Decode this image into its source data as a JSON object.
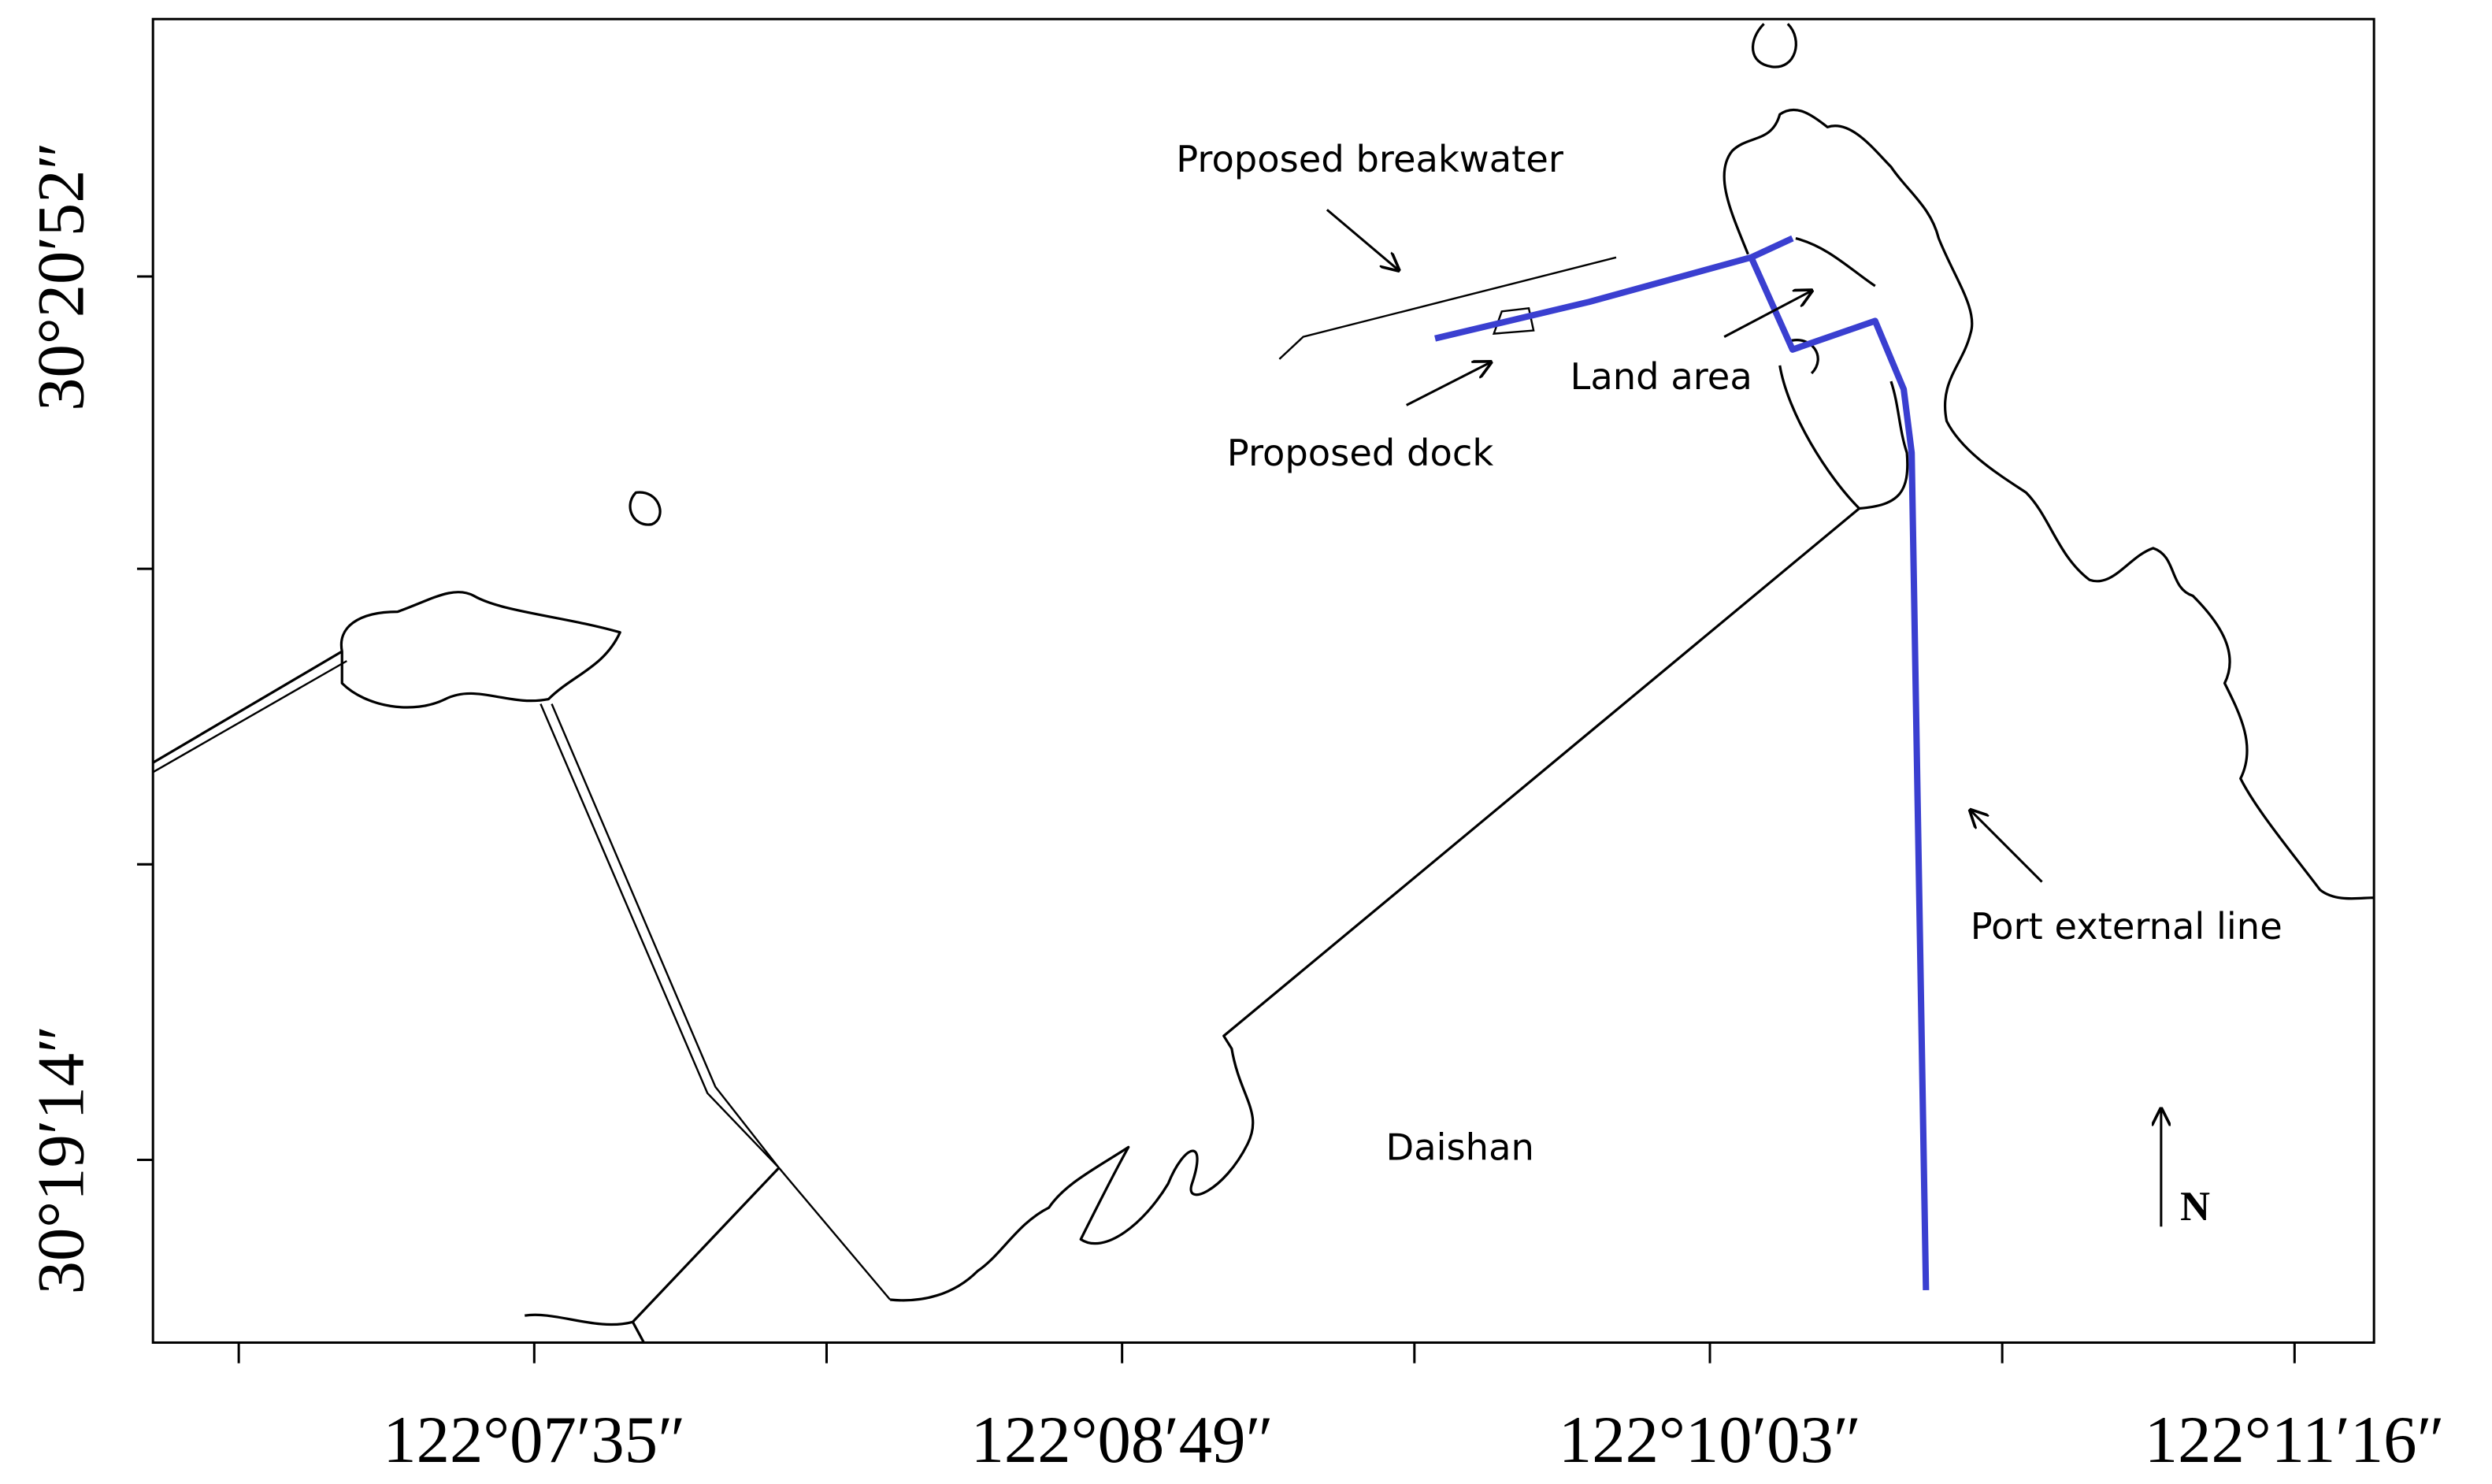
{
  "map": {
    "x_axis_labels": [
      "122°07′35″",
      "122°08′49″",
      "122°10′03″",
      "122°11′16″"
    ],
    "y_axis_labels": [
      "30°20′52″",
      "30°19′14″"
    ],
    "annotations": {
      "breakwater": "Proposed breakwater",
      "land_area": "Land area",
      "dock": "Proposed dock",
      "daishan": "Daishan",
      "port_line": "Port external line"
    },
    "north": "N"
  }
}
